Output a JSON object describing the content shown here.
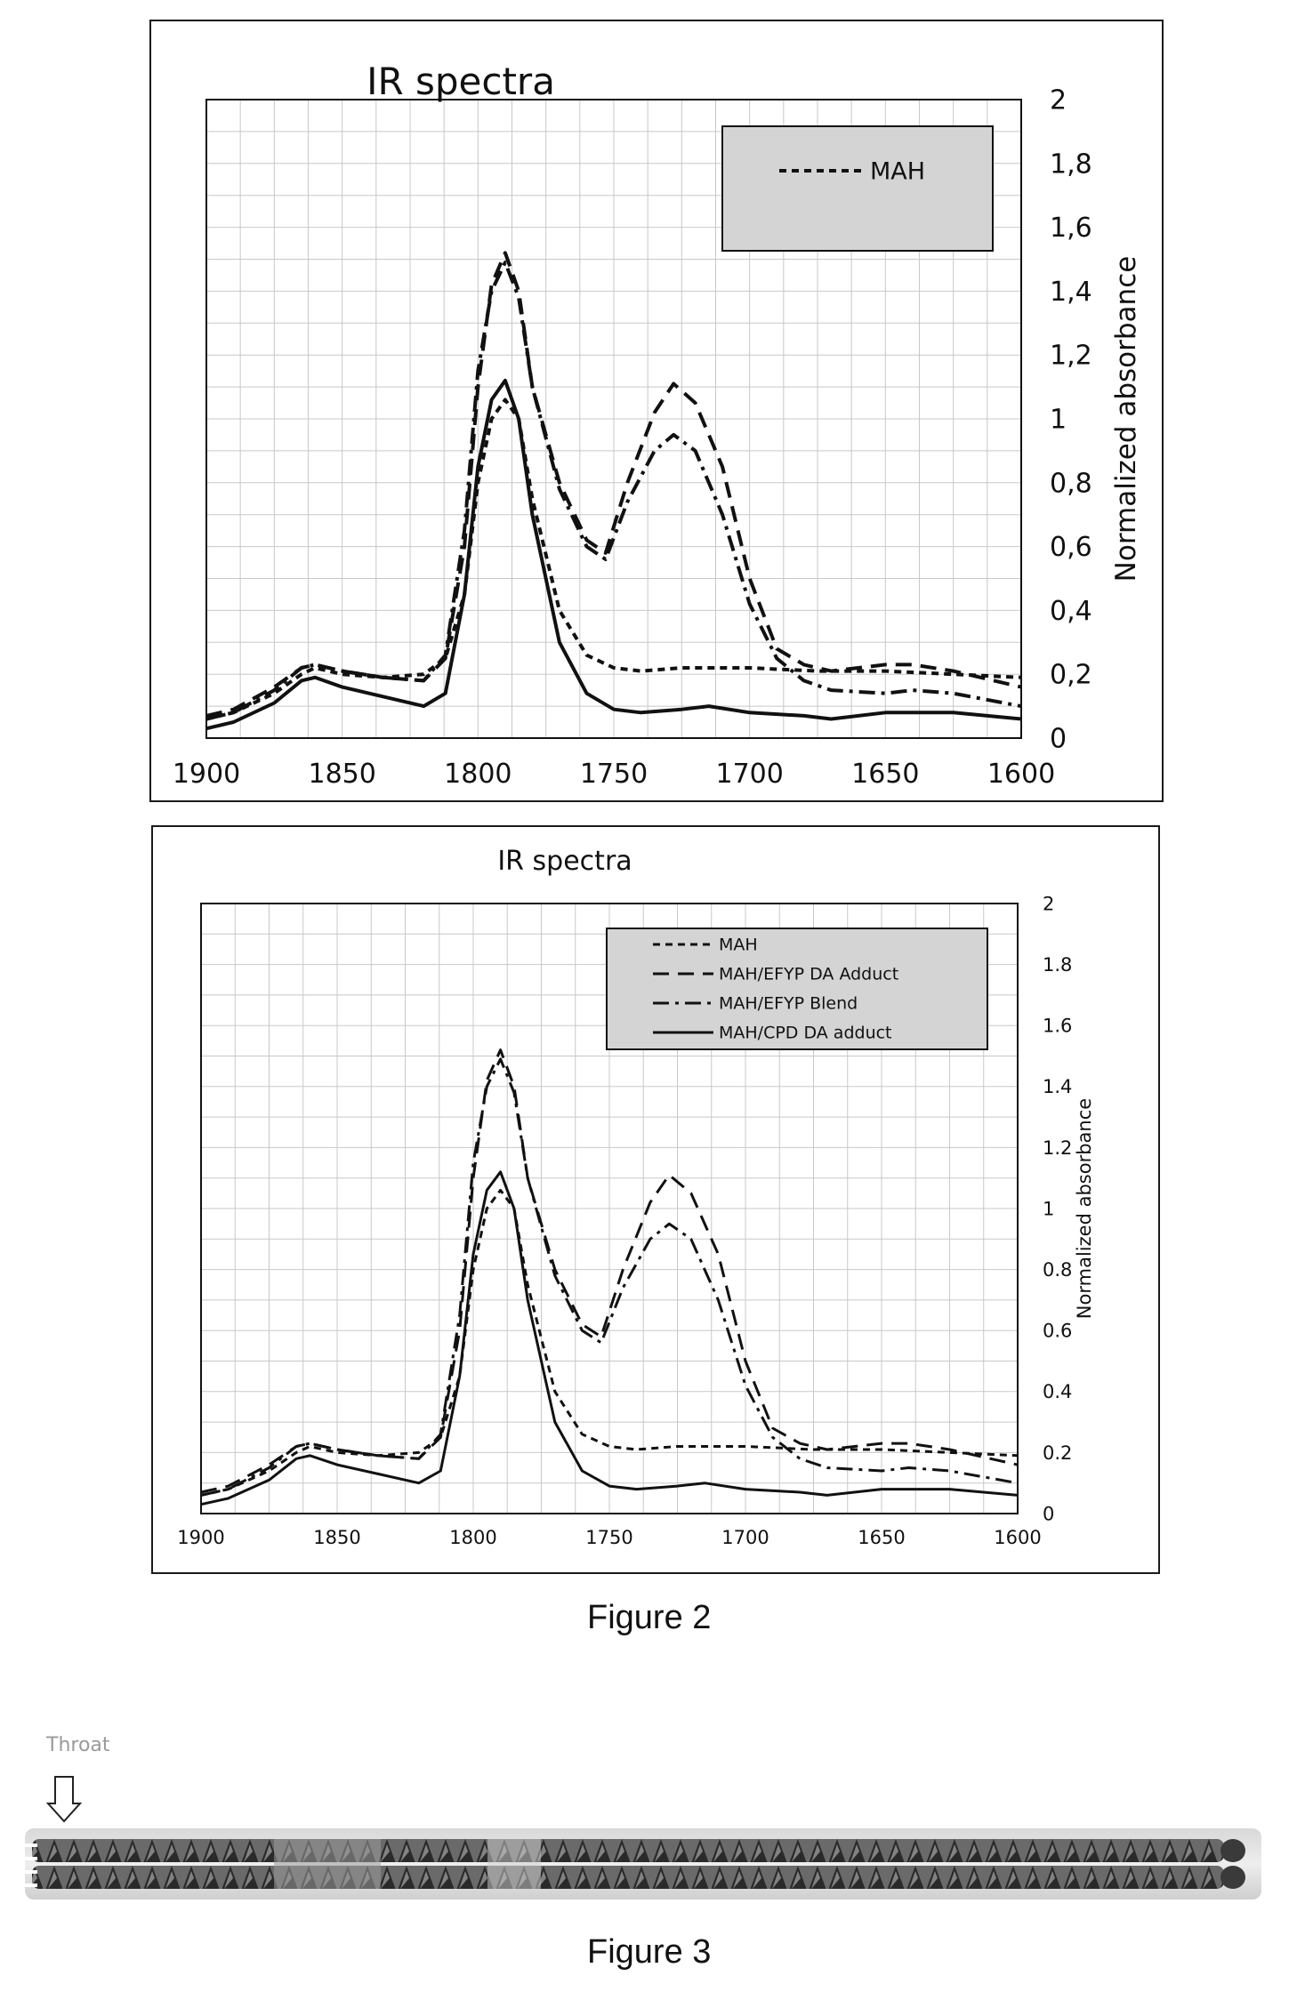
{
  "chart_data": [
    {
      "type": "line",
      "title": "IR spectra",
      "xlabel": "",
      "ylabel": "Normalized absorbance",
      "xlim": [
        1900,
        1600
      ],
      "ylim": [
        0,
        2
      ],
      "x_reversed": true,
      "x_ticks": [
        "1900",
        "1850",
        "1800",
        "1750",
        "1700",
        "1650",
        "1600"
      ],
      "y_ticks": [
        "0",
        "0,2",
        "0,4",
        "0,6",
        "0,8",
        "1",
        "1,2",
        "1,4",
        "1,6",
        "1,8",
        "2"
      ],
      "y_axis_side": "right",
      "grid": true,
      "legend": {
        "position": "top-right",
        "entries": [
          "MAH"
        ]
      },
      "series": [
        {
          "name": "MAH",
          "style": "short-dash",
          "points": [
            [
              1900,
              0.06
            ],
            [
              1890,
              0.08
            ],
            [
              1875,
              0.14
            ],
            [
              1865,
              0.2
            ],
            [
              1860,
              0.22
            ],
            [
              1850,
              0.2
            ],
            [
              1835,
              0.19
            ],
            [
              1820,
              0.2
            ],
            [
              1812,
              0.25
            ],
            [
              1805,
              0.45
            ],
            [
              1800,
              0.8
            ],
            [
              1795,
              1.0
            ],
            [
              1790,
              1.06
            ],
            [
              1785,
              1.0
            ],
            [
              1780,
              0.75
            ],
            [
              1770,
              0.4
            ],
            [
              1760,
              0.26
            ],
            [
              1750,
              0.22
            ],
            [
              1740,
              0.21
            ],
            [
              1725,
              0.22
            ],
            [
              1700,
              0.22
            ],
            [
              1675,
              0.21
            ],
            [
              1650,
              0.21
            ],
            [
              1625,
              0.2
            ],
            [
              1600,
              0.19
            ]
          ]
        },
        {
          "style": "long-dash",
          "points": [
            [
              1900,
              0.07
            ],
            [
              1890,
              0.09
            ],
            [
              1875,
              0.16
            ],
            [
              1865,
              0.22
            ],
            [
              1860,
              0.23
            ],
            [
              1850,
              0.21
            ],
            [
              1835,
              0.19
            ],
            [
              1820,
              0.18
            ],
            [
              1812,
              0.25
            ],
            [
              1805,
              0.6
            ],
            [
              1800,
              1.1
            ],
            [
              1795,
              1.42
            ],
            [
              1790,
              1.52
            ],
            [
              1785,
              1.4
            ],
            [
              1780,
              1.1
            ],
            [
              1770,
              0.8
            ],
            [
              1760,
              0.62
            ],
            [
              1753,
              0.58
            ],
            [
              1745,
              0.8
            ],
            [
              1735,
              1.02
            ],
            [
              1728,
              1.11
            ],
            [
              1720,
              1.05
            ],
            [
              1710,
              0.85
            ],
            [
              1700,
              0.5
            ],
            [
              1690,
              0.28
            ],
            [
              1680,
              0.23
            ],
            [
              1670,
              0.21
            ],
            [
              1650,
              0.23
            ],
            [
              1640,
              0.23
            ],
            [
              1625,
              0.21
            ],
            [
              1600,
              0.16
            ]
          ]
        },
        {
          "style": "dash-dot",
          "points": [
            [
              1900,
              0.06
            ],
            [
              1890,
              0.08
            ],
            [
              1875,
              0.15
            ],
            [
              1865,
              0.22
            ],
            [
              1860,
              0.23
            ],
            [
              1850,
              0.21
            ],
            [
              1835,
              0.19
            ],
            [
              1820,
              0.18
            ],
            [
              1812,
              0.26
            ],
            [
              1805,
              0.65
            ],
            [
              1800,
              1.15
            ],
            [
              1795,
              1.4
            ],
            [
              1790,
              1.49
            ],
            [
              1785,
              1.38
            ],
            [
              1780,
              1.1
            ],
            [
              1770,
              0.78
            ],
            [
              1760,
              0.6
            ],
            [
              1753,
              0.56
            ],
            [
              1745,
              0.74
            ],
            [
              1735,
              0.9
            ],
            [
              1728,
              0.95
            ],
            [
              1720,
              0.9
            ],
            [
              1710,
              0.7
            ],
            [
              1700,
              0.42
            ],
            [
              1690,
              0.25
            ],
            [
              1680,
              0.18
            ],
            [
              1670,
              0.15
            ],
            [
              1650,
              0.14
            ],
            [
              1640,
              0.15
            ],
            [
              1625,
              0.14
            ],
            [
              1600,
              0.1
            ]
          ]
        },
        {
          "style": "solid",
          "points": [
            [
              1900,
              0.03
            ],
            [
              1890,
              0.05
            ],
            [
              1875,
              0.11
            ],
            [
              1865,
              0.18
            ],
            [
              1860,
              0.19
            ],
            [
              1850,
              0.16
            ],
            [
              1835,
              0.13
            ],
            [
              1820,
              0.1
            ],
            [
              1812,
              0.14
            ],
            [
              1805,
              0.45
            ],
            [
              1800,
              0.85
            ],
            [
              1795,
              1.06
            ],
            [
              1790,
              1.12
            ],
            [
              1785,
              1.0
            ],
            [
              1780,
              0.7
            ],
            [
              1770,
              0.3
            ],
            [
              1760,
              0.14
            ],
            [
              1750,
              0.09
            ],
            [
              1740,
              0.08
            ],
            [
              1725,
              0.09
            ],
            [
              1715,
              0.1
            ],
            [
              1700,
              0.08
            ],
            [
              1680,
              0.07
            ],
            [
              1670,
              0.06
            ],
            [
              1650,
              0.08
            ],
            [
              1640,
              0.08
            ],
            [
              1625,
              0.08
            ],
            [
              1600,
              0.06
            ]
          ]
        }
      ]
    },
    {
      "type": "line",
      "title": "IR spectra",
      "xlabel": "",
      "ylabel": "Normalized absorbance",
      "xlim": [
        1900,
        1600
      ],
      "ylim": [
        0,
        2
      ],
      "x_reversed": true,
      "x_ticks": [
        "1900",
        "1850",
        "1800",
        "1750",
        "1700",
        "1650",
        "1600"
      ],
      "y_ticks": [
        "0",
        "0.2",
        "0.4",
        "0.6",
        "0.8",
        "1",
        "1.2",
        "1.4",
        "1.6",
        "1.8",
        "2"
      ],
      "y_axis_side": "right",
      "grid": true,
      "legend": {
        "position": "top-right",
        "entries": [
          "MAH",
          "MAH/EFYP DA Adduct",
          "MAH/EFYP Blend",
          "MAH/CPD DA adduct"
        ]
      },
      "series": [
        {
          "name": "MAH",
          "style": "short-dash",
          "points": [
            [
              1900,
              0.06
            ],
            [
              1890,
              0.08
            ],
            [
              1875,
              0.14
            ],
            [
              1865,
              0.2
            ],
            [
              1860,
              0.22
            ],
            [
              1850,
              0.2
            ],
            [
              1835,
              0.19
            ],
            [
              1820,
              0.2
            ],
            [
              1812,
              0.25
            ],
            [
              1805,
              0.45
            ],
            [
              1800,
              0.8
            ],
            [
              1795,
              1.0
            ],
            [
              1790,
              1.06
            ],
            [
              1785,
              1.0
            ],
            [
              1780,
              0.75
            ],
            [
              1770,
              0.4
            ],
            [
              1760,
              0.26
            ],
            [
              1750,
              0.22
            ],
            [
              1740,
              0.21
            ],
            [
              1725,
              0.22
            ],
            [
              1700,
              0.22
            ],
            [
              1675,
              0.21
            ],
            [
              1650,
              0.21
            ],
            [
              1625,
              0.2
            ],
            [
              1600,
              0.19
            ]
          ]
        },
        {
          "name": "MAH/EFYP DA Adduct",
          "style": "long-dash",
          "points": [
            [
              1900,
              0.07
            ],
            [
              1890,
              0.09
            ],
            [
              1875,
              0.16
            ],
            [
              1865,
              0.22
            ],
            [
              1860,
              0.23
            ],
            [
              1850,
              0.21
            ],
            [
              1835,
              0.19
            ],
            [
              1820,
              0.18
            ],
            [
              1812,
              0.25
            ],
            [
              1805,
              0.6
            ],
            [
              1800,
              1.1
            ],
            [
              1795,
              1.42
            ],
            [
              1790,
              1.52
            ],
            [
              1785,
              1.4
            ],
            [
              1780,
              1.1
            ],
            [
              1770,
              0.8
            ],
            [
              1760,
              0.62
            ],
            [
              1753,
              0.58
            ],
            [
              1745,
              0.8
            ],
            [
              1735,
              1.02
            ],
            [
              1728,
              1.11
            ],
            [
              1720,
              1.05
            ],
            [
              1710,
              0.85
            ],
            [
              1700,
              0.5
            ],
            [
              1690,
              0.28
            ],
            [
              1680,
              0.23
            ],
            [
              1670,
              0.21
            ],
            [
              1650,
              0.23
            ],
            [
              1640,
              0.23
            ],
            [
              1625,
              0.21
            ],
            [
              1600,
              0.16
            ]
          ]
        },
        {
          "name": "MAH/EFYP Blend",
          "style": "dash-dot",
          "points": [
            [
              1900,
              0.06
            ],
            [
              1890,
              0.08
            ],
            [
              1875,
              0.15
            ],
            [
              1865,
              0.22
            ],
            [
              1860,
              0.23
            ],
            [
              1850,
              0.21
            ],
            [
              1835,
              0.19
            ],
            [
              1820,
              0.18
            ],
            [
              1812,
              0.26
            ],
            [
              1805,
              0.65
            ],
            [
              1800,
              1.15
            ],
            [
              1795,
              1.4
            ],
            [
              1790,
              1.49
            ],
            [
              1785,
              1.38
            ],
            [
              1780,
              1.1
            ],
            [
              1770,
              0.78
            ],
            [
              1760,
              0.6
            ],
            [
              1753,
              0.56
            ],
            [
              1745,
              0.74
            ],
            [
              1735,
              0.9
            ],
            [
              1728,
              0.95
            ],
            [
              1720,
              0.9
            ],
            [
              1710,
              0.7
            ],
            [
              1700,
              0.42
            ],
            [
              1690,
              0.25
            ],
            [
              1680,
              0.18
            ],
            [
              1670,
              0.15
            ],
            [
              1650,
              0.14
            ],
            [
              1640,
              0.15
            ],
            [
              1625,
              0.14
            ],
            [
              1600,
              0.1
            ]
          ]
        },
        {
          "name": "MAH/CPD DA adduct",
          "style": "solid",
          "points": [
            [
              1900,
              0.03
            ],
            [
              1890,
              0.05
            ],
            [
              1875,
              0.11
            ],
            [
              1865,
              0.18
            ],
            [
              1860,
              0.19
            ],
            [
              1850,
              0.16
            ],
            [
              1835,
              0.13
            ],
            [
              1820,
              0.1
            ],
            [
              1812,
              0.14
            ],
            [
              1805,
              0.45
            ],
            [
              1800,
              0.85
            ],
            [
              1795,
              1.06
            ],
            [
              1790,
              1.12
            ],
            [
              1785,
              1.0
            ],
            [
              1780,
              0.7
            ],
            [
              1770,
              0.3
            ],
            [
              1760,
              0.14
            ],
            [
              1750,
              0.09
            ],
            [
              1740,
              0.08
            ],
            [
              1725,
              0.09
            ],
            [
              1715,
              0.1
            ],
            [
              1700,
              0.08
            ],
            [
              1680,
              0.07
            ],
            [
              1670,
              0.06
            ],
            [
              1650,
              0.08
            ],
            [
              1640,
              0.08
            ],
            [
              1625,
              0.08
            ],
            [
              1600,
              0.06
            ]
          ]
        }
      ]
    }
  ],
  "captions": {
    "figure2": "Figure 2",
    "figure3": "Figure 3"
  },
  "figure3": {
    "throat_label": "Throat",
    "arrow_icon": "down-arrow-outline"
  }
}
